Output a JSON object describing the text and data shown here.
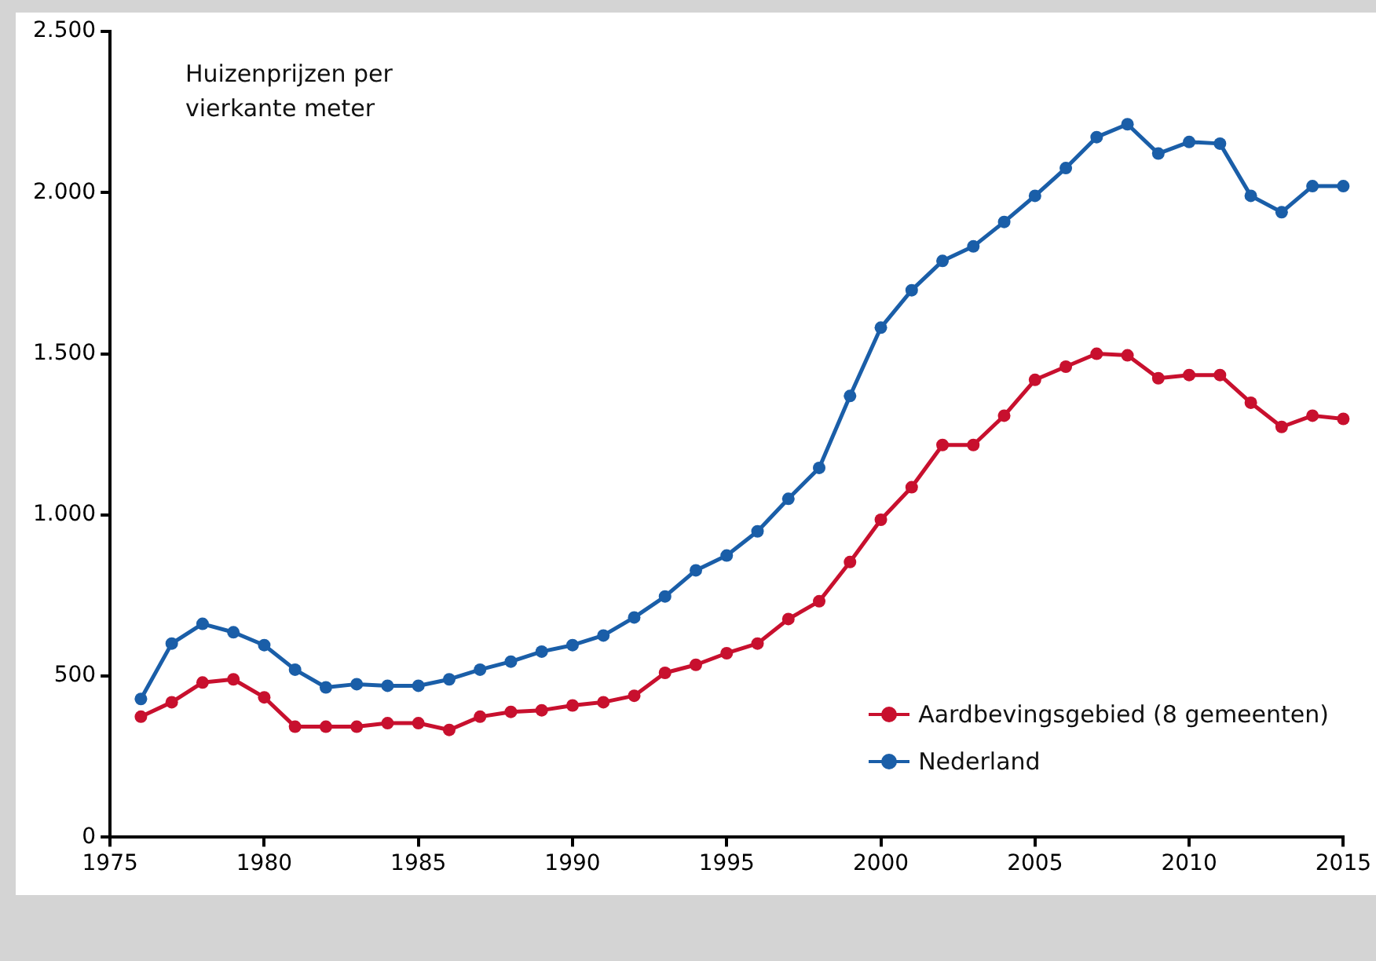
{
  "chart_data": {
    "type": "line",
    "ylabel": "Huizenprijzen per vierkante meter",
    "x": [
      1976,
      1977,
      1978,
      1979,
      1980,
      1981,
      1982,
      1983,
      1984,
      1985,
      1986,
      1987,
      1988,
      1989,
      1990,
      1991,
      1992,
      1993,
      1994,
      1995,
      1996,
      1997,
      1998,
      1999,
      2000,
      2001,
      2002,
      2003,
      2004,
      2005,
      2006,
      2007,
      2008,
      2009,
      2010,
      2011,
      2012,
      2013,
      2014,
      2015
    ],
    "series": [
      {
        "name": "Aardbevingsgebied (8 gemeenten)",
        "color": "#c8102e",
        "values": [
          374,
          419,
          480,
          490,
          434,
          343,
          343,
          343,
          354,
          354,
          333,
          374,
          389,
          394,
          409,
          419,
          439,
          510,
          535,
          571,
          601,
          677,
          732,
          854,
          985,
          1086,
          1217,
          1217,
          1308,
          1419,
          1460,
          1500,
          1495,
          1424,
          1434,
          1434,
          1348,
          1273,
          1308,
          1298
        ]
      },
      {
        "name": "Nederland",
        "color": "#1a5ea8",
        "values": [
          429,
          601,
          662,
          636,
          596,
          520,
          465,
          475,
          470,
          470,
          490,
          520,
          545,
          576,
          596,
          626,
          682,
          747,
          828,
          874,
          949,
          1050,
          1146,
          1369,
          1581,
          1697,
          1788,
          1833,
          1909,
          1990,
          2076,
          2172,
          2212,
          2121,
          2157,
          2152,
          1990,
          1939,
          2020,
          2020
        ]
      }
    ],
    "xlim": [
      1975,
      2015
    ],
    "xticks": [
      1975,
      1980,
      1985,
      1990,
      1995,
      2000,
      2005,
      2010,
      2015
    ],
    "ylim": [
      0,
      2500
    ],
    "yticks": [
      0,
      {
        "value": 500,
        "label": "500"
      },
      {
        "value": 1000,
        "label": "1.000"
      },
      {
        "value": 1500,
        "label": "1.500"
      },
      {
        "value": 2000,
        "label": "2.000"
      },
      {
        "value": 2500,
        "label": "2.500"
      }
    ],
    "grid": false,
    "legend": "bottom right",
    "marker": "circle",
    "line_style": "solid"
  }
}
